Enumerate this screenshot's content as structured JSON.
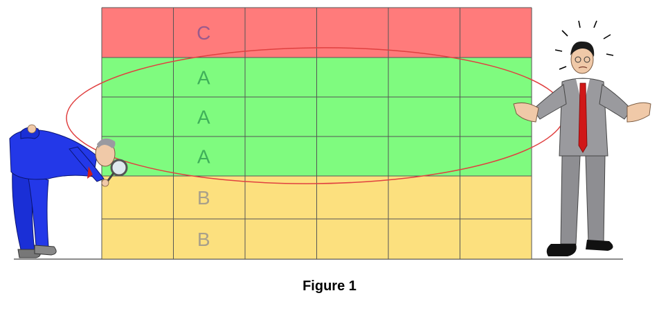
{
  "grid": {
    "columns": 6,
    "rows": [
      {
        "label": "C",
        "color": "#ff7b7b",
        "label_color": "#9b5a8c"
      },
      {
        "label": "A",
        "color": "#7ffb7f",
        "label_color": "#3fb05a"
      },
      {
        "label": "A",
        "color": "#7ffb7f",
        "label_color": "#3fb05a"
      },
      {
        "label": "A",
        "color": "#7ffb7f",
        "label_color": "#3fb05a"
      },
      {
        "label": "B",
        "color": "#fce07e",
        "label_color": "#a8a08a"
      },
      {
        "label": "B",
        "color": "#fce07e",
        "label_color": "#a8a08a"
      }
    ],
    "label_column": 1,
    "grid_line_color": "#555555"
  },
  "highlight_ellipse_color": "#e04040",
  "caption": "Figure 1",
  "figures": {
    "left": "inspector-with-magnifying-glass",
    "right": "confused-businessman-shrugging"
  }
}
